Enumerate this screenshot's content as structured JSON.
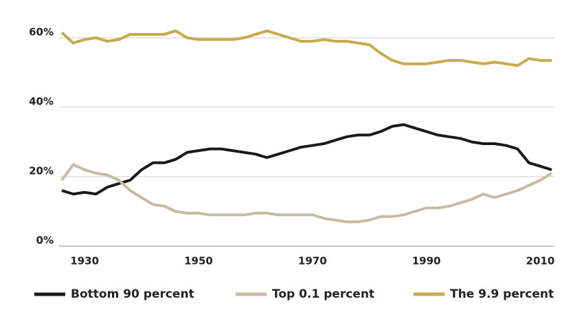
{
  "chart_data": {
    "type": "line",
    "x": [
      1926,
      1928,
      1930,
      1932,
      1934,
      1936,
      1938,
      1940,
      1942,
      1944,
      1946,
      1948,
      1950,
      1952,
      1954,
      1956,
      1958,
      1960,
      1962,
      1964,
      1966,
      1968,
      1970,
      1972,
      1974,
      1976,
      1978,
      1980,
      1982,
      1984,
      1986,
      1988,
      1990,
      1992,
      1994,
      1996,
      1998,
      2000,
      2002,
      2004,
      2006,
      2008,
      2010,
      2012
    ],
    "series": [
      {
        "name": "Bottom 90 percent",
        "color": "#1a1a1a",
        "values": [
          16,
          15,
          15.5,
          15,
          17,
          18,
          19,
          22,
          24,
          24,
          25,
          27,
          27.5,
          28,
          28,
          27.5,
          27,
          26.5,
          25.5,
          26.5,
          27.5,
          28.5,
          29,
          29.5,
          30.5,
          31.5,
          32,
          32,
          33,
          34.5,
          35,
          34,
          33,
          32,
          31.5,
          31,
          30,
          29.5,
          29.5,
          29,
          28,
          24,
          23,
          22
        ]
      },
      {
        "name": "Top 0.1 percent",
        "color": "#c8b9a0",
        "values": [
          19,
          23.5,
          22,
          21,
          20.5,
          19,
          16,
          14,
          12,
          11.5,
          10,
          9.5,
          9.5,
          9,
          9,
          9,
          9,
          9.5,
          9.5,
          9,
          9,
          9,
          9,
          8,
          7.5,
          7,
          7,
          7.5,
          8.5,
          8.5,
          9,
          10,
          11,
          11,
          11.5,
          12.5,
          13.5,
          15,
          14,
          15,
          16,
          17.5,
          19,
          21
        ]
      },
      {
        "name": "The 9.9 percent",
        "color": "#c9a94a",
        "values": [
          61.5,
          58.5,
          59.5,
          60,
          59,
          59.5,
          61,
          61,
          61,
          61,
          62,
          60,
          59.5,
          59.5,
          59.5,
          59.5,
          60,
          61,
          62,
          61,
          60,
          59,
          59,
          59.5,
          59,
          59,
          58.5,
          58,
          55.5,
          53.5,
          52.5,
          52.5,
          52.5,
          53,
          53.5,
          53.5,
          53,
          52.5,
          53,
          52.5,
          52,
          54,
          53.5,
          53.5
        ]
      }
    ],
    "xlim": [
      1926,
      2012
    ],
    "xticks": [
      1930,
      1950,
      1970,
      1990,
      2010
    ],
    "ylim": [
      0,
      65
    ],
    "yticks": [
      {
        "value": 0,
        "label": "0%"
      },
      {
        "value": 20,
        "label": "20%"
      },
      {
        "value": 40,
        "label": "40%"
      },
      {
        "value": 60,
        "label": "60%"
      }
    ],
    "grid": true
  }
}
